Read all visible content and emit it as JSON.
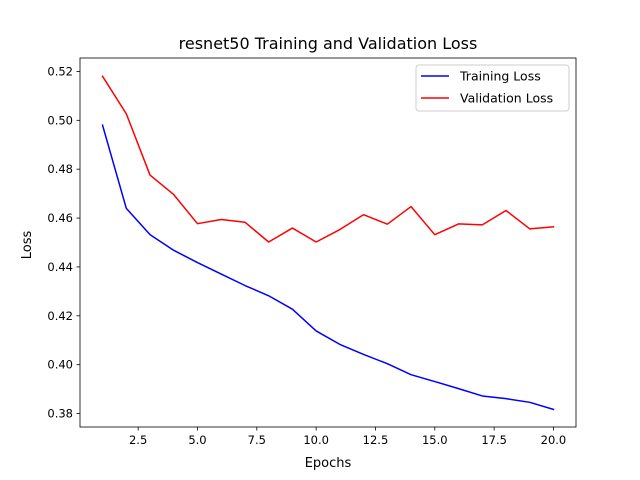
{
  "chart_data": {
    "type": "line",
    "title": "resnet50 Training and Validation Loss",
    "xlabel": "Epochs",
    "ylabel": "Loss",
    "xlim": [
      0.05,
      20.95
    ],
    "ylim": [
      0.3745,
      0.5255
    ],
    "xticks": [
      2.5,
      5.0,
      7.5,
      10.0,
      12.5,
      15.0,
      17.5,
      20.0
    ],
    "xtick_labels": [
      "2.5",
      "5.0",
      "7.5",
      "10.0",
      "12.5",
      "15.0",
      "17.5",
      "20.0"
    ],
    "yticks": [
      0.38,
      0.4,
      0.42,
      0.44,
      0.46,
      0.48,
      0.5,
      0.52
    ],
    "ytick_labels": [
      "0.38",
      "0.40",
      "0.42",
      "0.44",
      "0.46",
      "0.48",
      "0.50",
      "0.52"
    ],
    "grid": false,
    "legend": "upper right",
    "x": [
      1,
      2,
      3,
      4,
      5,
      6,
      7,
      8,
      9,
      10,
      11,
      12,
      13,
      14,
      15,
      16,
      17,
      18,
      19,
      20
    ],
    "series": [
      {
        "name": "Training Loss",
        "color": "#0000ff",
        "values": [
          0.498,
          0.464,
          0.4532,
          0.4468,
          0.4418,
          0.4371,
          0.4324,
          0.4282,
          0.4227,
          0.4138,
          0.4083,
          0.4042,
          0.4004,
          0.3959,
          0.3931,
          0.3902,
          0.3872,
          0.3861,
          0.3846,
          0.3817
        ]
      },
      {
        "name": "Validation Loss",
        "color": "#ff0000",
        "values": [
          0.518,
          0.5027,
          0.4776,
          0.4696,
          0.4577,
          0.4594,
          0.4583,
          0.4502,
          0.4559,
          0.4502,
          0.4553,
          0.4614,
          0.4575,
          0.4647,
          0.4532,
          0.4576,
          0.4572,
          0.4631,
          0.4556,
          0.4564
        ]
      }
    ]
  }
}
